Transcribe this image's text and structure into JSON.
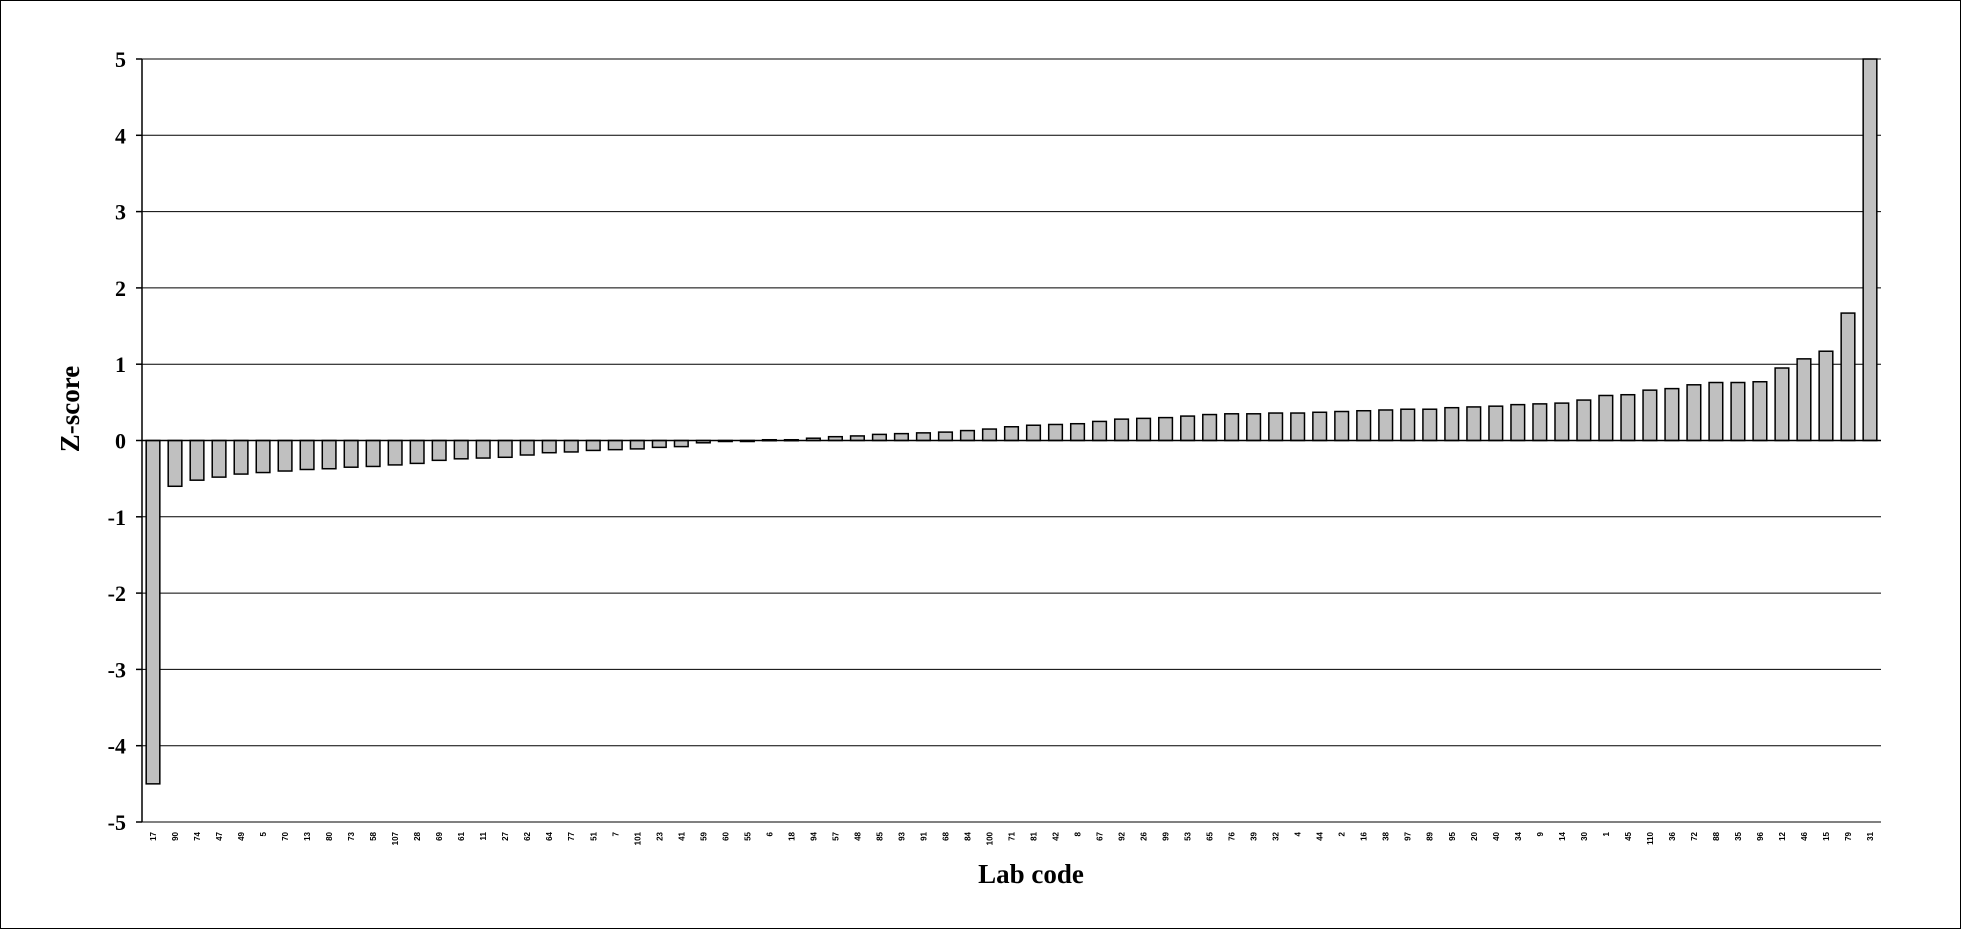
{
  "chart_data": {
    "type": "bar",
    "title": "",
    "xlabel": "Lab code",
    "ylabel": "Z-score",
    "ylim": [
      -5,
      5
    ],
    "yticks": [
      5,
      4,
      3,
      2,
      1,
      0,
      -1,
      -2,
      -3,
      -4,
      -5
    ],
    "grid": true,
    "legend": "none",
    "bar_color": "#c0c0c0",
    "categories": [
      "17",
      "90",
      "74",
      "47",
      "49",
      "5",
      "70",
      "13",
      "80",
      "73",
      "58",
      "107",
      "28",
      "69",
      "61",
      "11",
      "27",
      "62",
      "64",
      "77",
      "51",
      "7",
      "101",
      "23",
      "41",
      "59",
      "60",
      "55",
      "6",
      "18",
      "94",
      "57",
      "48",
      "85",
      "93",
      "91",
      "68",
      "84",
      "100",
      "71",
      "81",
      "42",
      "8",
      "67",
      "92",
      "26",
      "99",
      "53",
      "65",
      "76",
      "39",
      "32",
      "4",
      "44",
      "2",
      "16",
      "38",
      "97",
      "89",
      "95",
      "20",
      "40",
      "34",
      "9",
      "14",
      "30",
      "1",
      "45",
      "110",
      "36",
      "72",
      "88",
      "35",
      "96",
      "12",
      "46",
      "15",
      "79",
      "31"
    ],
    "values": [
      -4.5,
      -0.6,
      -0.52,
      -0.48,
      -0.44,
      -0.42,
      -0.4,
      -0.38,
      -0.37,
      -0.35,
      -0.34,
      -0.32,
      -0.3,
      -0.26,
      -0.24,
      -0.23,
      -0.22,
      -0.19,
      -0.16,
      -0.15,
      -0.13,
      -0.12,
      -0.11,
      -0.09,
      -0.08,
      -0.03,
      -0.01,
      0.0,
      0.01,
      0.01,
      0.03,
      0.05,
      0.06,
      0.08,
      0.09,
      0.1,
      0.11,
      0.13,
      0.15,
      0.18,
      0.2,
      0.21,
      0.22,
      0.25,
      0.28,
      0.29,
      0.3,
      0.32,
      0.34,
      0.35,
      0.35,
      0.36,
      0.36,
      0.37,
      0.38,
      0.39,
      0.4,
      0.41,
      0.41,
      0.43,
      0.44,
      0.45,
      0.47,
      0.48,
      0.49,
      0.53,
      0.59,
      0.6,
      0.66,
      0.68,
      0.73,
      0.76,
      0.76,
      0.77,
      0.95,
      1.07,
      1.17,
      1.67,
      5.1
    ]
  }
}
